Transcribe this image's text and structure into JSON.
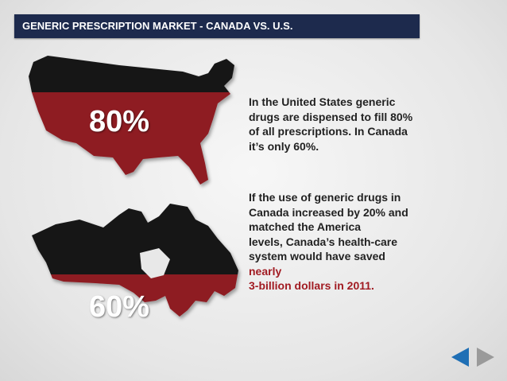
{
  "header": {
    "title": "GENERIC PRESCRIPTION MARKET - CANADA VS. U.S."
  },
  "maps": [
    {
      "label": "80%"
    },
    {
      "label": "60%"
    }
  ],
  "paragraphs": [
    {
      "lines": [
        "In the United States generic",
        "drugs are dispensed to fill 80%",
        "of all prescriptions. In Canada",
        "it’s only 60%."
      ]
    },
    {
      "lines": [
        "If the use of generic drugs in",
        "Canada increased by 20% and",
        "matched the America",
        "levels, Canada’s health-care",
        "system would have saved"
      ],
      "highlight_lines": [
        "nearly",
        "3-billion dollars in 2011."
      ]
    }
  ]
}
